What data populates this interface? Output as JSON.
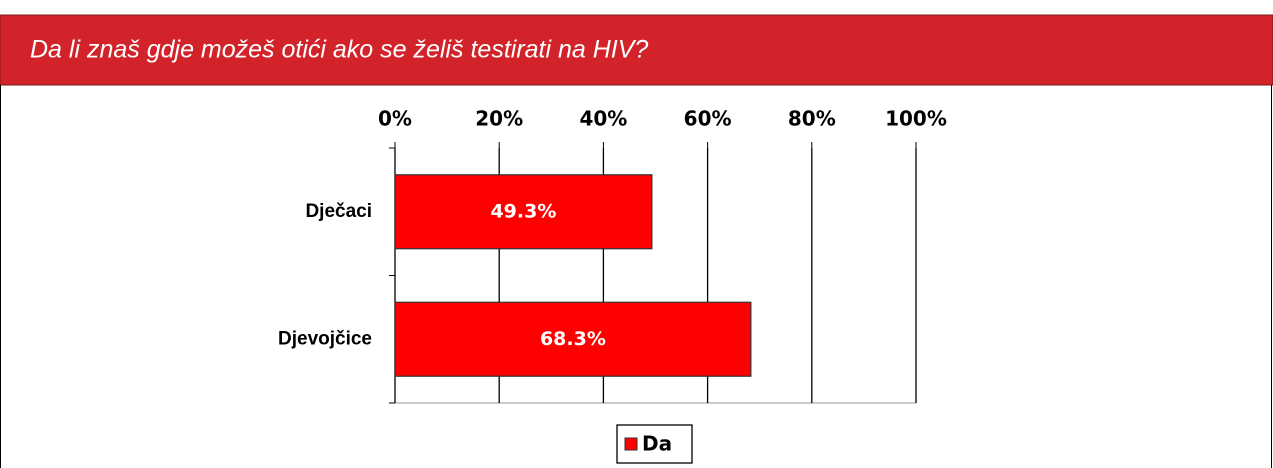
{
  "title": "Da li znaš gdje možeš otići ako se želiš testirati na HIV?",
  "chart_data": {
    "type": "bar",
    "orientation": "horizontal",
    "categories": [
      "Dječaci",
      "Djevojčice"
    ],
    "series": [
      {
        "name": "Da",
        "color": "#ff0000",
        "values": [
          49.3,
          68.3
        ],
        "value_labels": [
          "49.3%",
          "68.3%"
        ]
      }
    ],
    "xlim": [
      0,
      100
    ],
    "xticks": [
      {
        "value": 0,
        "label": "0%"
      },
      {
        "value": 20,
        "label": "20%"
      },
      {
        "value": 40,
        "label": "40%"
      },
      {
        "value": 60,
        "label": "60%"
      },
      {
        "value": 80,
        "label": "80%"
      },
      {
        "value": 100,
        "label": "100%"
      }
    ],
    "grid": true,
    "legend": "bottom"
  }
}
